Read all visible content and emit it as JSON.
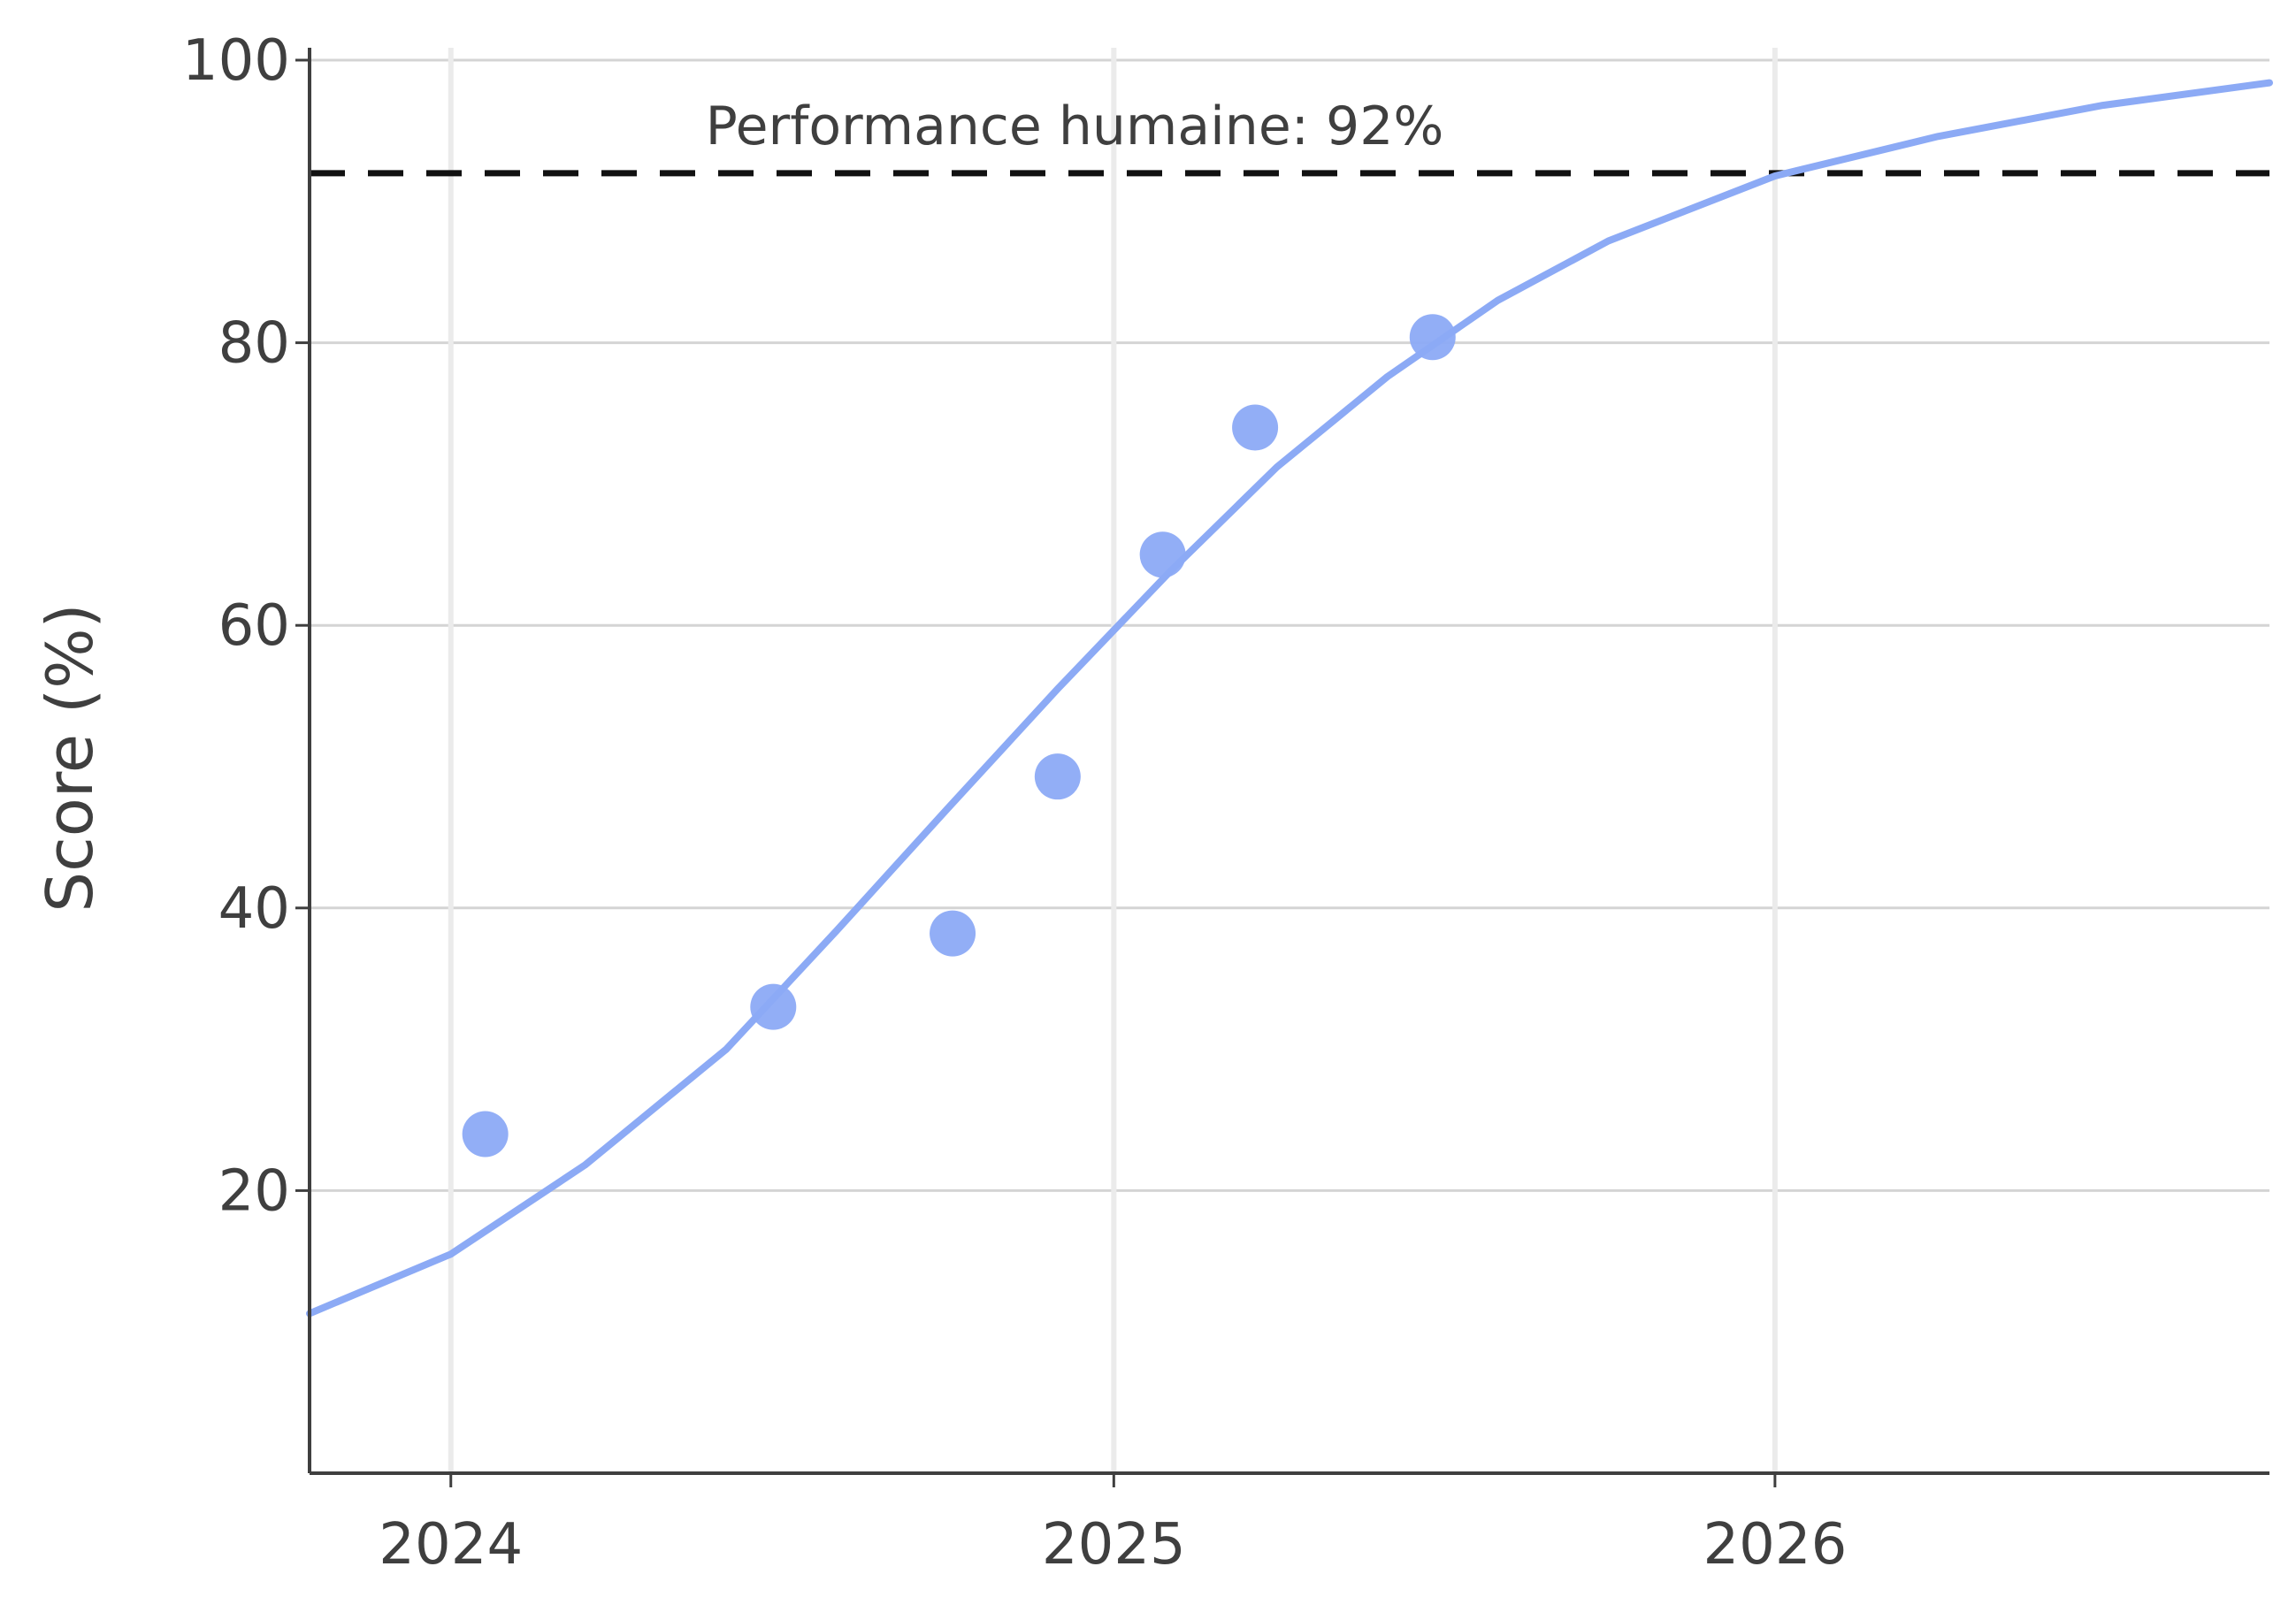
{
  "chart_data": {
    "type": "scatter",
    "title": "",
    "xlabel": "",
    "ylabel": "Score (%)",
    "xlim": [
      "2023-10-15",
      "2026-10-01"
    ],
    "ylim": [
      0,
      100
    ],
    "grid": true,
    "legend": "none",
    "x_ticks": [
      {
        "date": "2024-01-01",
        "label": "2024"
      },
      {
        "date": "2025-01-01",
        "label": "2025"
      },
      {
        "date": "2026-01-01",
        "label": "2026"
      }
    ],
    "y_ticks": [
      {
        "value": 20,
        "label": "20"
      },
      {
        "value": 40,
        "label": "40"
      },
      {
        "value": 60,
        "label": "60"
      },
      {
        "value": 80,
        "label": "80"
      },
      {
        "value": 100,
        "label": "100"
      }
    ],
    "series": [
      {
        "kind": "points",
        "color": "#8caaf5",
        "points": [
          {
            "x": "2024-01-20",
            "y": 24
          },
          {
            "x": "2024-06-27",
            "y": 33
          },
          {
            "x": "2024-10-04",
            "y": 38.2
          },
          {
            "x": "2024-12-01",
            "y": 49.3
          },
          {
            "x": "2025-01-28",
            "y": 65
          },
          {
            "x": "2025-03-20",
            "y": 74
          },
          {
            "x": "2025-06-26",
            "y": 80.4
          }
        ]
      },
      {
        "kind": "trend-line",
        "color": "#8caaf5",
        "points": [
          {
            "x": "2023-10-15",
            "y": 11.3
          },
          {
            "x": "2024-01-01",
            "y": 15.5
          },
          {
            "x": "2024-03-15",
            "y": 21.8
          },
          {
            "x": "2024-06-01",
            "y": 30.0
          },
          {
            "x": "2024-08-01",
            "y": 38.4
          },
          {
            "x": "2024-10-01",
            "y": 47.0
          },
          {
            "x": "2024-12-01",
            "y": 55.5
          },
          {
            "x": "2025-02-01",
            "y": 63.8
          },
          {
            "x": "2025-04-01",
            "y": 71.2
          },
          {
            "x": "2025-06-01",
            "y": 77.6
          },
          {
            "x": "2025-08-01",
            "y": 83.0
          },
          {
            "x": "2025-10-01",
            "y": 87.2
          },
          {
            "x": "2026-01-01",
            "y": 91.8
          },
          {
            "x": "2026-04-01",
            "y": 94.6
          },
          {
            "x": "2026-07-01",
            "y": 96.8
          },
          {
            "x": "2026-10-01",
            "y": 98.4
          }
        ]
      }
    ],
    "reference_line": {
      "y": 92,
      "style": "dashed",
      "color": "#111111",
      "label": "Performance humaine: 92%"
    }
  }
}
